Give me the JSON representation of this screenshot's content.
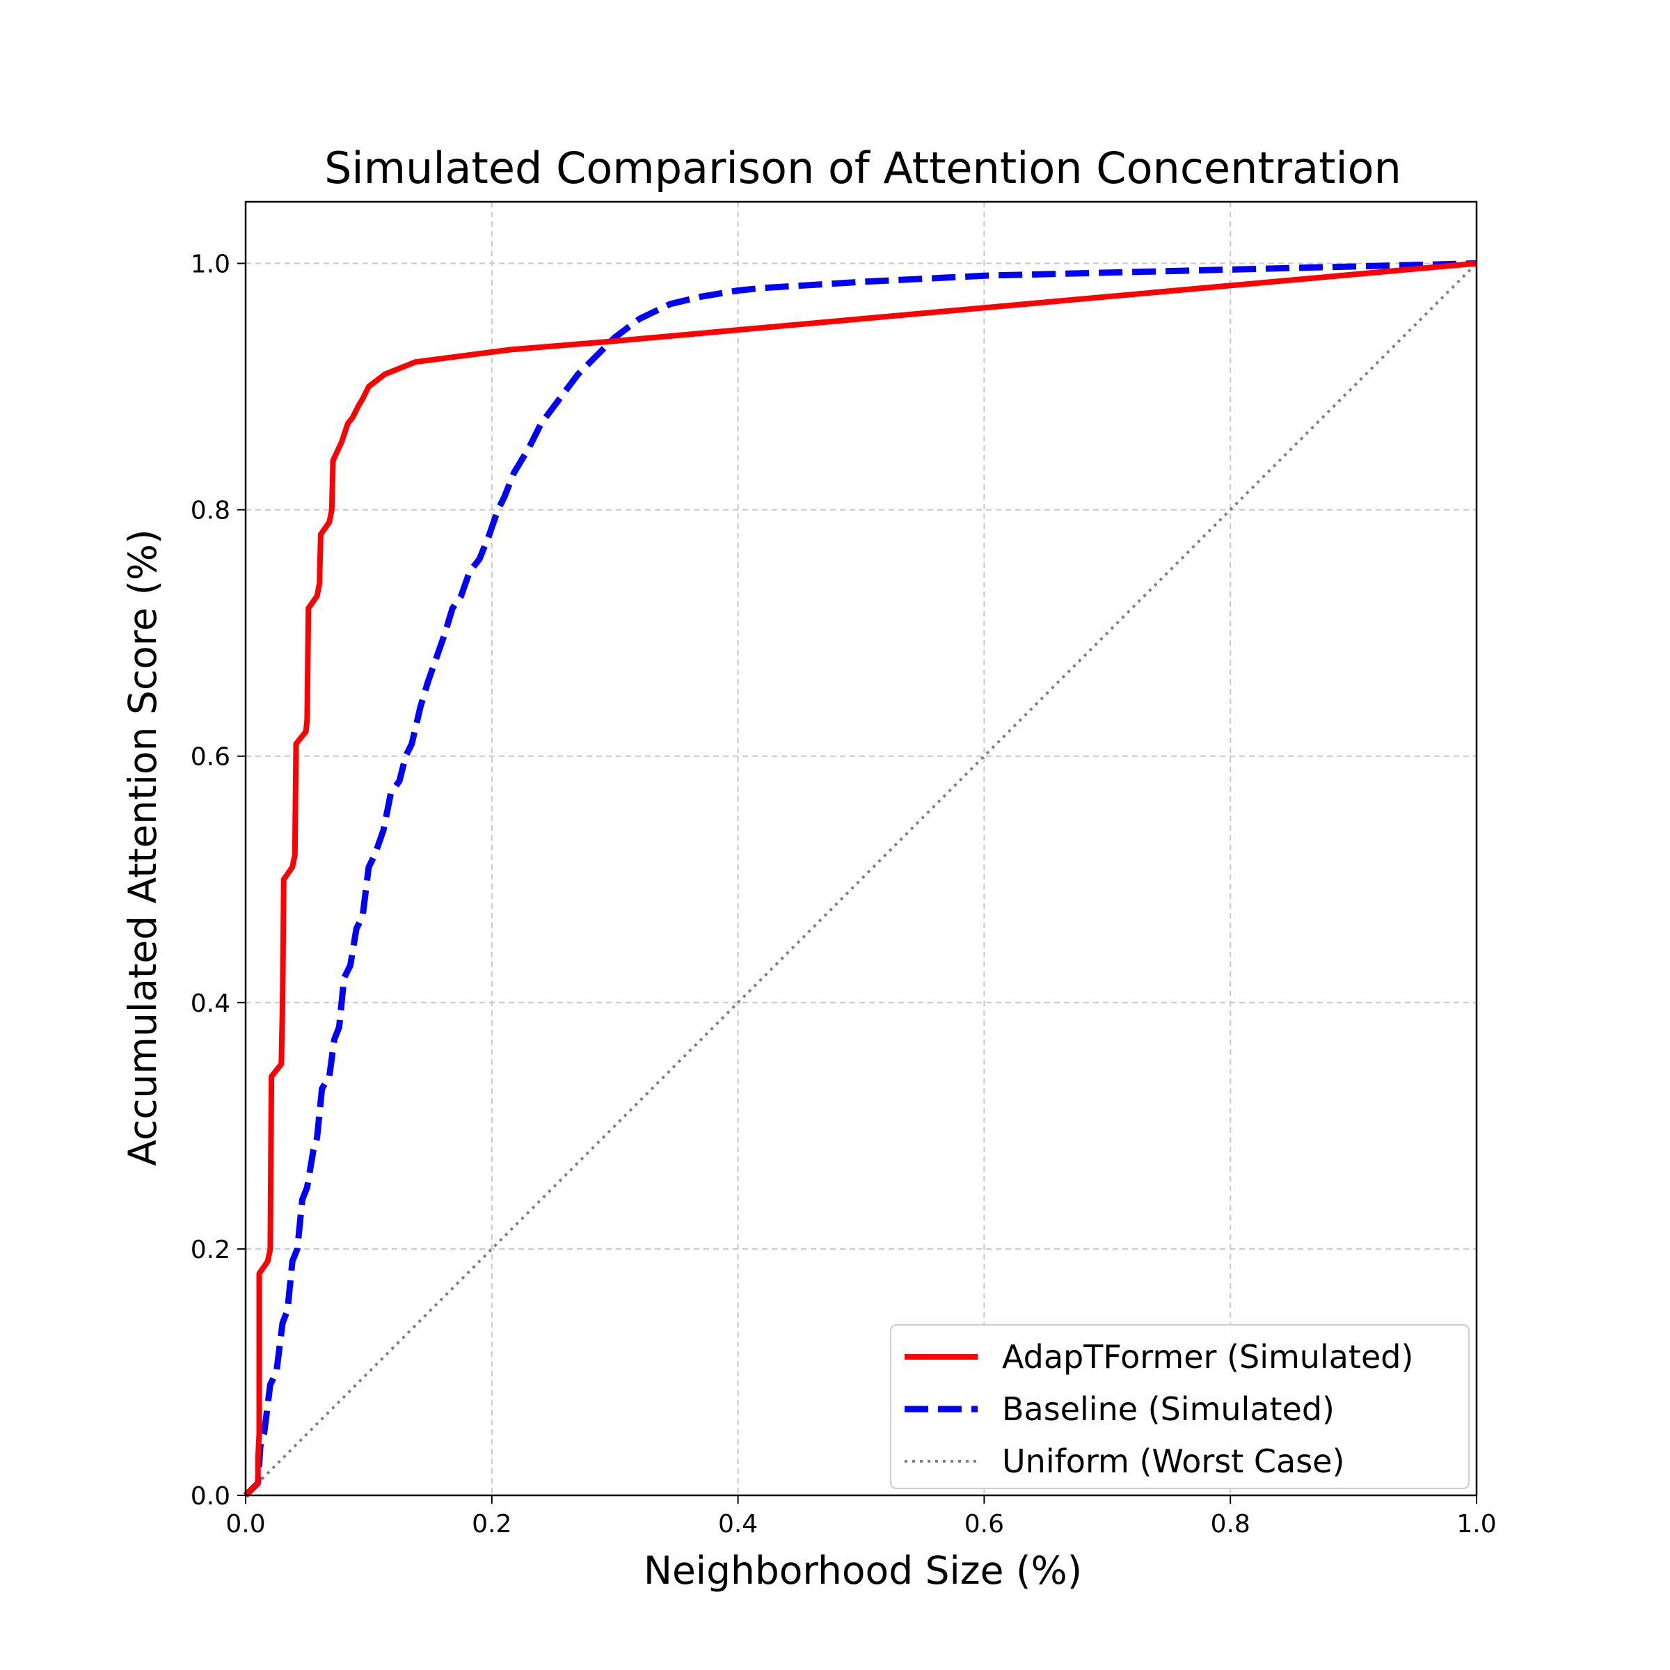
{
  "chart_data": {
    "type": "line",
    "title": "Simulated Comparison of Attention Concentration",
    "xlabel": "Neighborhood Size (%)",
    "ylabel": "Accumulated Attention Score (%)",
    "xlim": [
      0.0,
      1.0
    ],
    "ylim": [
      0.0,
      1.05
    ],
    "xticks": [
      "0.0",
      "0.2",
      "0.4",
      "0.6",
      "0.8",
      "1.0"
    ],
    "yticks": [
      "0.0",
      "0.2",
      "0.4",
      "0.6",
      "0.8",
      "1.0"
    ],
    "grid": true,
    "legend_position": "lower-right",
    "series": [
      {
        "name": "AdapTFormer (Simulated)",
        "color": "#ff0000",
        "style": "solid",
        "x": [
          0.0,
          0.01,
          0.01,
          0.011,
          0.011,
          0.018,
          0.02,
          0.021,
          0.029,
          0.03,
          0.031,
          0.038,
          0.04,
          0.041,
          0.049,
          0.05,
          0.051,
          0.058,
          0.06,
          0.061,
          0.068,
          0.07,
          0.071,
          0.078,
          0.083,
          0.087,
          0.092,
          0.095,
          0.1,
          0.113,
          0.138,
          0.215,
          0.3,
          1.0
        ],
        "y": [
          0.0,
          0.01,
          0.03,
          0.05,
          0.18,
          0.19,
          0.2,
          0.34,
          0.35,
          0.4,
          0.5,
          0.51,
          0.52,
          0.61,
          0.62,
          0.63,
          0.72,
          0.73,
          0.74,
          0.78,
          0.79,
          0.8,
          0.84,
          0.855,
          0.87,
          0.875,
          0.885,
          0.89,
          0.9,
          0.91,
          0.92,
          0.93,
          0.937,
          1.0
        ]
      },
      {
        "name": "Baseline (Simulated)",
        "color": "#0000ff",
        "style": "dashed",
        "x": [
          0.0,
          0.01,
          0.012,
          0.015,
          0.02,
          0.025,
          0.03,
          0.034,
          0.038,
          0.042,
          0.046,
          0.05,
          0.055,
          0.058,
          0.062,
          0.068,
          0.072,
          0.076,
          0.08,
          0.085,
          0.09,
          0.095,
          0.1,
          0.105,
          0.112,
          0.118,
          0.125,
          0.13,
          0.135,
          0.142,
          0.148,
          0.155,
          0.162,
          0.168,
          0.175,
          0.182,
          0.19,
          0.198,
          0.205,
          0.21,
          0.218,
          0.23,
          0.24,
          0.255,
          0.27,
          0.285,
          0.3,
          0.32,
          0.345,
          0.37,
          0.4,
          0.42,
          0.5,
          0.6,
          0.8,
          1.0
        ],
        "y": [
          0.0,
          0.01,
          0.04,
          0.05,
          0.09,
          0.1,
          0.14,
          0.15,
          0.19,
          0.2,
          0.24,
          0.25,
          0.28,
          0.29,
          0.33,
          0.34,
          0.37,
          0.38,
          0.42,
          0.43,
          0.46,
          0.47,
          0.51,
          0.52,
          0.54,
          0.57,
          0.58,
          0.6,
          0.61,
          0.64,
          0.66,
          0.68,
          0.7,
          0.72,
          0.73,
          0.75,
          0.76,
          0.78,
          0.8,
          0.81,
          0.83,
          0.85,
          0.87,
          0.89,
          0.91,
          0.925,
          0.94,
          0.955,
          0.967,
          0.973,
          0.978,
          0.98,
          0.985,
          0.99,
          0.995,
          1.0
        ]
      },
      {
        "name": "Uniform (Worst Case)",
        "color": "#808080",
        "style": "dotted",
        "x": [
          0.0,
          1.0
        ],
        "y": [
          0.0,
          1.0
        ]
      }
    ]
  }
}
